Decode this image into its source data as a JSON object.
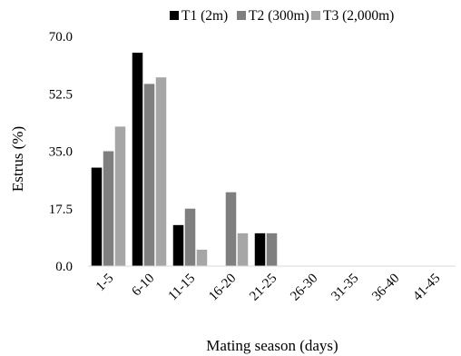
{
  "chart_data": {
    "type": "bar",
    "title": "",
    "xlabel": "Mating season (days)",
    "ylabel": "Estrus (%)",
    "ylim": [
      0,
      70
    ],
    "yticks": [
      "0.0",
      "17.5",
      "35.0",
      "52.5",
      "70.0"
    ],
    "categories": [
      "1-5",
      "6-10",
      "11-15",
      "16-20",
      "21-25",
      "26-30",
      "31-35",
      "36-40",
      "41-45"
    ],
    "series": [
      {
        "name": "T1 (2m)",
        "color": "#000000",
        "values": [
          30,
          65,
          12.5,
          0,
          10,
          0,
          0,
          0,
          0
        ]
      },
      {
        "name": "T2 (300m)",
        "color": "#7f7f7f",
        "values": [
          35,
          55.5,
          17.5,
          22.5,
          10,
          0,
          0,
          0,
          0
        ]
      },
      {
        "name": "T3 (2,000m)",
        "color": "#a6a6a6",
        "values": [
          42.5,
          57.5,
          5,
          10,
          0,
          0,
          0,
          0,
          0
        ]
      }
    ],
    "legend": "top",
    "grid": false
  }
}
